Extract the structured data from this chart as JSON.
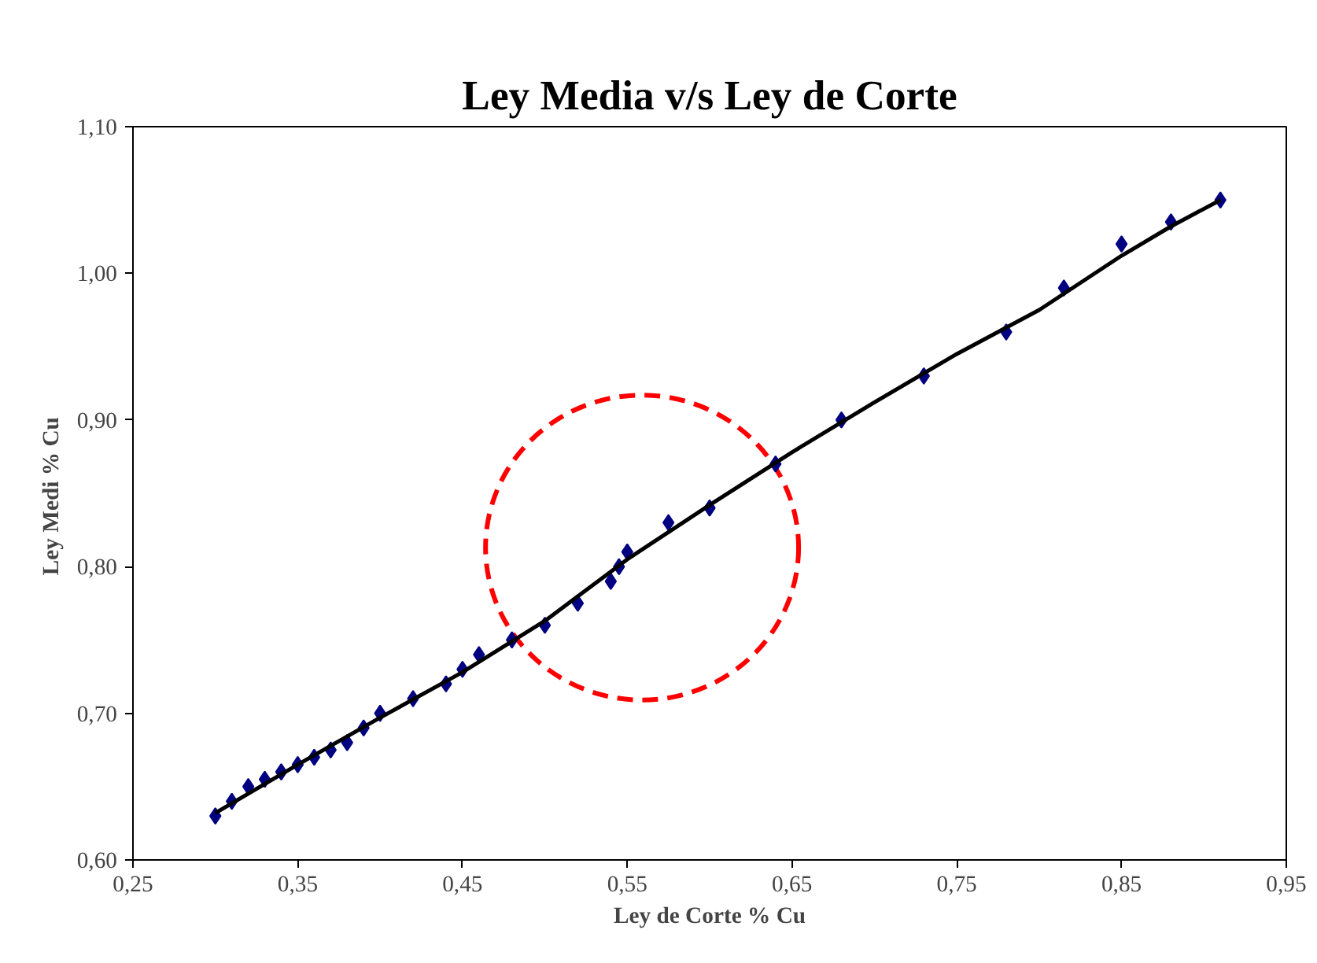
{
  "chart_data": {
    "type": "scatter",
    "title": "Ley Media v/s Ley de Corte",
    "xlabel": "Ley de Corte % Cu",
    "ylabel": "Ley Medi  % Cu",
    "x": [
      0.3,
      0.31,
      0.32,
      0.33,
      0.34,
      0.35,
      0.36,
      0.37,
      0.38,
      0.39,
      0.4,
      0.42,
      0.44,
      0.45,
      0.46,
      0.48,
      0.5,
      0.52,
      0.54,
      0.545,
      0.55,
      0.575,
      0.6,
      0.64,
      0.68,
      0.73,
      0.78,
      0.815,
      0.85,
      0.88,
      0.91
    ],
    "series": [
      {
        "color": "#000080",
        "marker": "diamond",
        "values": [
          0.63,
          0.64,
          0.65,
          0.655,
          0.66,
          0.665,
          0.67,
          0.675,
          0.68,
          0.69,
          0.7,
          0.71,
          0.72,
          0.73,
          0.74,
          0.75,
          0.76,
          0.775,
          0.79,
          0.8,
          0.81,
          0.83,
          0.84,
          0.87,
          0.9,
          0.93,
          0.96,
          0.99,
          1.02,
          1.035,
          1.05
        ]
      },
      {
        "type": "line",
        "color": "#000000",
        "x": [
          0.3,
          0.35,
          0.4,
          0.45,
          0.5,
          0.55,
          0.6,
          0.65,
          0.7,
          0.75,
          0.8,
          0.85,
          0.88,
          0.91
        ],
        "values": [
          0.632,
          0.665,
          0.697,
          0.728,
          0.763,
          0.805,
          0.842,
          0.878,
          0.912,
          0.945,
          0.975,
          1.012,
          1.032,
          1.05
        ]
      }
    ],
    "xlim": [
      0.25,
      0.95
    ],
    "ylim": [
      0.6,
      1.1
    ],
    "xticks": [
      {
        "value": 0.25,
        "label": "0,25"
      },
      {
        "value": 0.35,
        "label": "0,35"
      },
      {
        "value": 0.45,
        "label": "0,45"
      },
      {
        "value": 0.55,
        "label": "0,55"
      },
      {
        "value": 0.65,
        "label": "0,65"
      },
      {
        "value": 0.75,
        "label": "0,75"
      },
      {
        "value": 0.85,
        "label": "0,85"
      },
      {
        "value": 0.95,
        "label": "0,95"
      }
    ],
    "yticks": [
      {
        "value": 0.6,
        "label": "0,60"
      },
      {
        "value": 0.7,
        "label": "0,70"
      },
      {
        "value": 0.8,
        "label": "0,80"
      },
      {
        "value": 0.9,
        "label": "0,90"
      },
      {
        "value": 1.0,
        "label": "1,00"
      },
      {
        "value": 1.1,
        "label": "1,10"
      }
    ],
    "grid": false
  }
}
